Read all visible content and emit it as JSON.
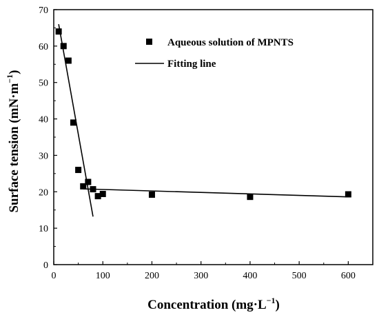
{
  "chart_data": {
    "type": "scatter",
    "title": "",
    "xlabel": "Concentration (mg·L",
    "xlabel_sup": "−1",
    "xlabel_close": ")",
    "ylabel": "Surface tension (mN·m",
    "ylabel_sup": "−1",
    "ylabel_close": ")",
    "xlim": [
      0,
      650
    ],
    "ylim": [
      0,
      70
    ],
    "xticks": [
      0,
      100,
      200,
      300,
      400,
      500,
      600
    ],
    "yticks": [
      0,
      10,
      20,
      30,
      40,
      50,
      60,
      70
    ],
    "grid": false,
    "legend_position": "top-right",
    "series": [
      {
        "name": "Aqueous solution of MPNTS",
        "kind": "scatter",
        "marker": "square",
        "color": "#000000",
        "x": [
          10,
          20,
          30,
          40,
          50,
          60,
          70,
          80,
          90,
          100,
          200,
          400,
          600
        ],
        "y": [
          64,
          60,
          56,
          39,
          26,
          21.5,
          22.7,
          20.7,
          18.8,
          19.4,
          19.2,
          18.6,
          19.3
        ]
      },
      {
        "name": "Fitting line",
        "kind": "line",
        "color": "#000000",
        "segments": [
          {
            "x": [
              10,
              80
            ],
            "y": [
              66,
              13.2
            ]
          },
          {
            "x": [
              60,
              600
            ],
            "y": [
              20.8,
              18.6
            ]
          }
        ]
      }
    ]
  }
}
